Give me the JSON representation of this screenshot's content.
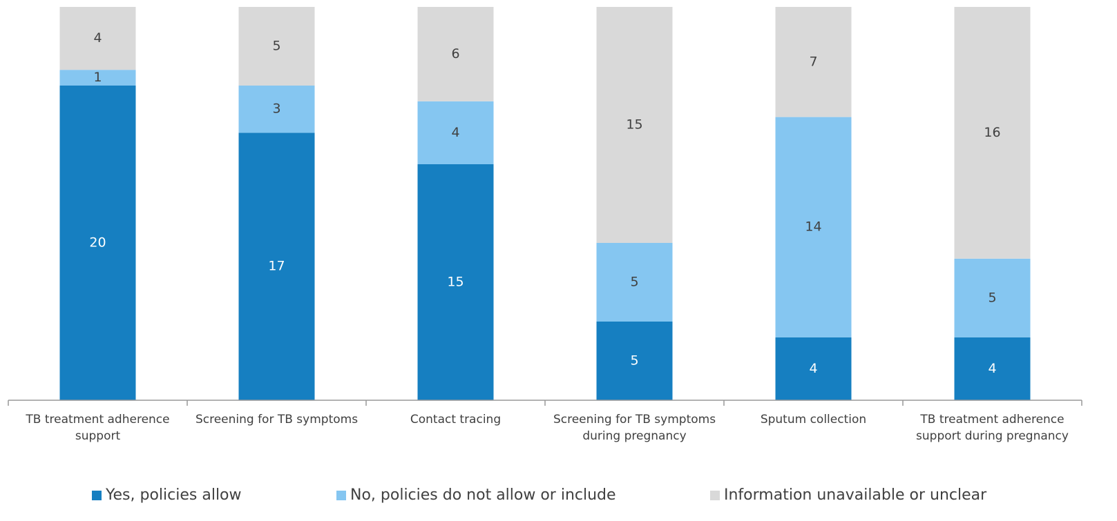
{
  "chart_data": {
    "type": "bar",
    "stacked": true,
    "categories": [
      "TB treatment adherence support",
      "Screening for TB symptoms",
      "Contact tracing",
      "Screening for TB symptoms during pregnancy",
      "Sputum collection",
      "TB treatment adherence support during pregnancy"
    ],
    "series": [
      {
        "name": "Yes, policies allow",
        "color": "#167fc1",
        "label_color": "#ffffff",
        "values": [
          20,
          17,
          15,
          5,
          4,
          4
        ]
      },
      {
        "name": "No, policies do not allow or include",
        "color": "#85c6f1",
        "label_color": "#404040",
        "values": [
          1,
          3,
          4,
          5,
          14,
          5
        ]
      },
      {
        "name": "Information unavailable or unclear",
        "color": "#d9d9d9",
        "label_color": "#404040",
        "values": [
          4,
          5,
          6,
          15,
          7,
          16
        ]
      }
    ],
    "ylim": [
      0,
      25
    ]
  }
}
